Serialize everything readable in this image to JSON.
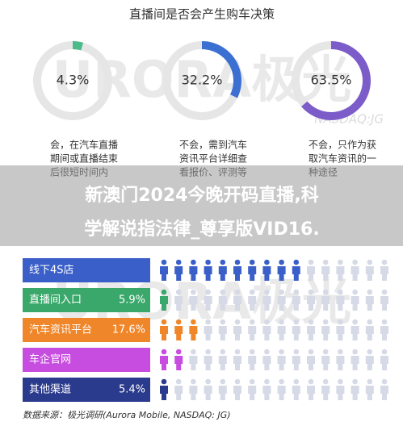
{
  "title": "直播间是否会产生购车决策",
  "banner": [
    "新澳门2024今晚开码直播,科",
    "学解说指法律_尊享版VID16."
  ],
  "watermark": [
    "URORA极光",
    "NASDAQ:JG",
    "URORA极光"
  ],
  "source": "数据来源：极光调研(Aurora Mobile, NASDAQ: JG)",
  "chart_data": [
    {
      "type": "donut",
      "values": [
        4.3
      ],
      "value_labels": [
        "4.3%"
      ],
      "color": "#4cbb8a",
      "caption": [
        "会，在汽车直播",
        "期间或直播结束",
        "后很短时间内"
      ]
    },
    {
      "type": "donut",
      "values": [
        32.2
      ],
      "value_labels": [
        "32.2%"
      ],
      "color": "#3b6fd1",
      "caption": [
        "不会，需到汽车",
        "资讯平台详细查",
        "看报价、评测等"
      ]
    },
    {
      "type": "donut",
      "values": [
        63.5
      ],
      "value_labels": [
        "63.5%"
      ],
      "color": "#7b5cc9",
      "caption": [
        "不会，只作为获",
        "取汽车资讯的一",
        "种途径"
      ]
    },
    {
      "type": "icon-bar",
      "categories": [
        "线下4S店",
        "直播间入口",
        "汽车资讯平台",
        "车企官网",
        "其他渠道"
      ],
      "values": [
        60,
        5.9,
        17.6,
        11.1,
        5.4
      ],
      "value_labels": [
        null,
        "5.9%",
        "17.6%",
        null,
        "5.4%"
      ],
      "colors": [
        "#3a5fc8",
        "#3aa86a",
        "#f0862a",
        "#c74de0",
        "#2a3a8c"
      ]
    }
  ]
}
